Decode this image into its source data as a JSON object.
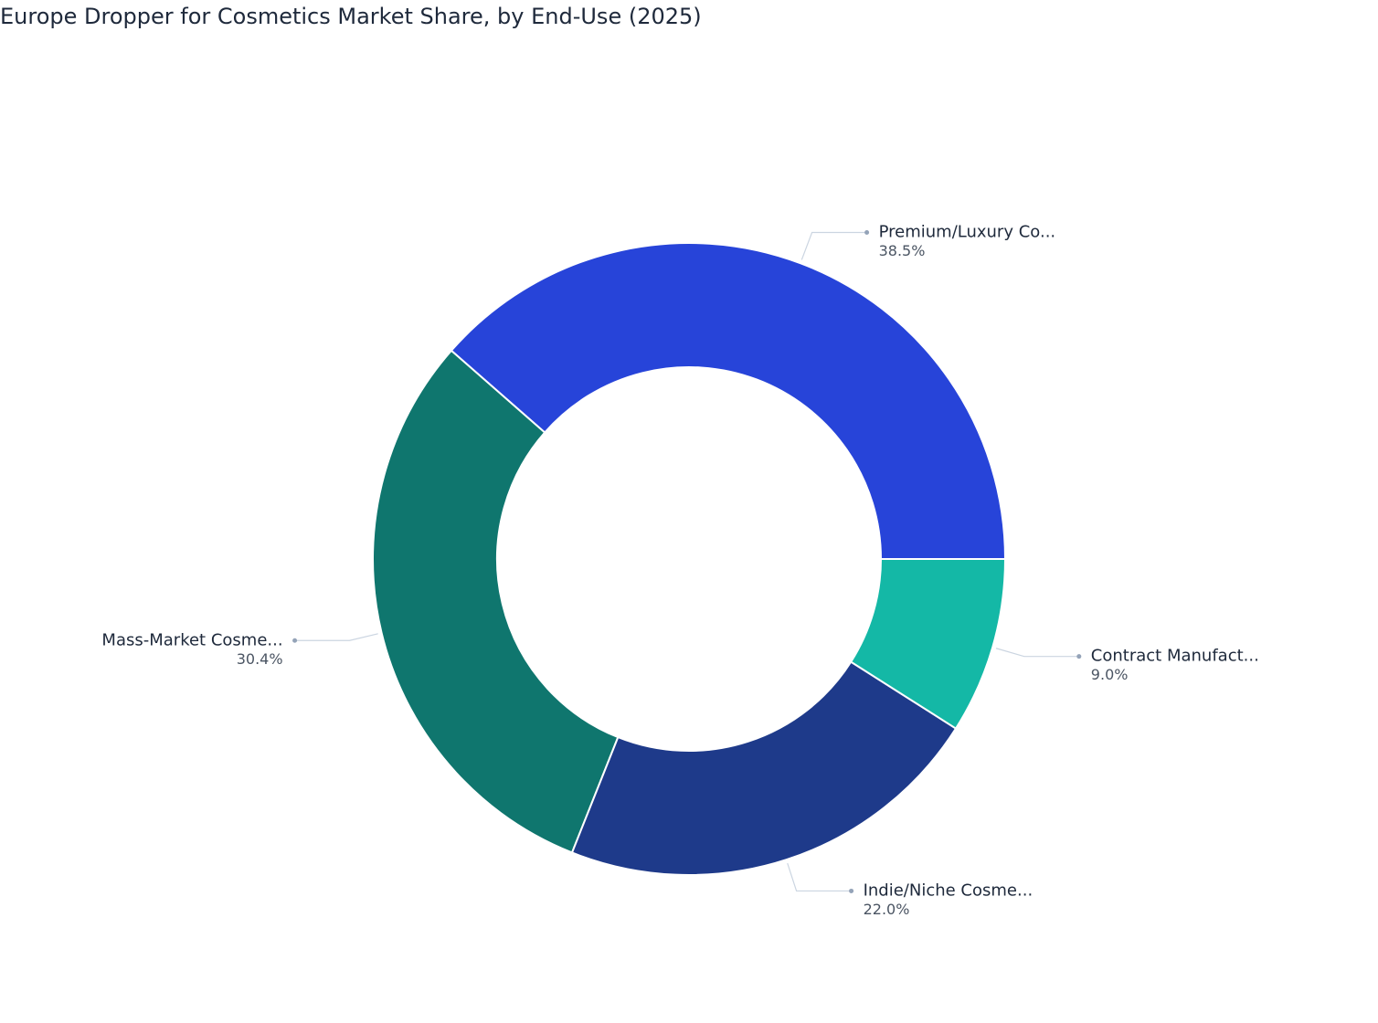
{
  "chart_data": {
    "type": "pie",
    "title": "Europe Dropper for Cosmetics Market Share, by End-Use (2025)",
    "categories": [
      "Premium/Luxury Co...",
      "Mass-Market Cosme...",
      "Indie/Niche Cosme...",
      "Contract Manufact..."
    ],
    "values": [
      38.5,
      30.4,
      22.0,
      9.0
    ],
    "value_labels": [
      "38.5%",
      "30.4%",
      "22.0%",
      "9.0%"
    ],
    "colors": [
      "#2744d9",
      "#0f766e",
      "#1e3a8a",
      "#14b8a6"
    ]
  }
}
